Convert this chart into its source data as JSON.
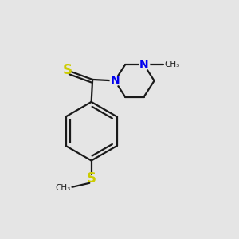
{
  "background_color": "#e5e5e5",
  "bond_color": "#1a1a1a",
  "n_color": "#0000ee",
  "s_color": "#cccc00",
  "s_thioamide_color": "#999900",
  "line_width": 1.6,
  "figsize": [
    3.0,
    3.0
  ],
  "dpi": 100,
  "xlim": [
    0,
    10
  ],
  "ylim": [
    0,
    10
  ]
}
